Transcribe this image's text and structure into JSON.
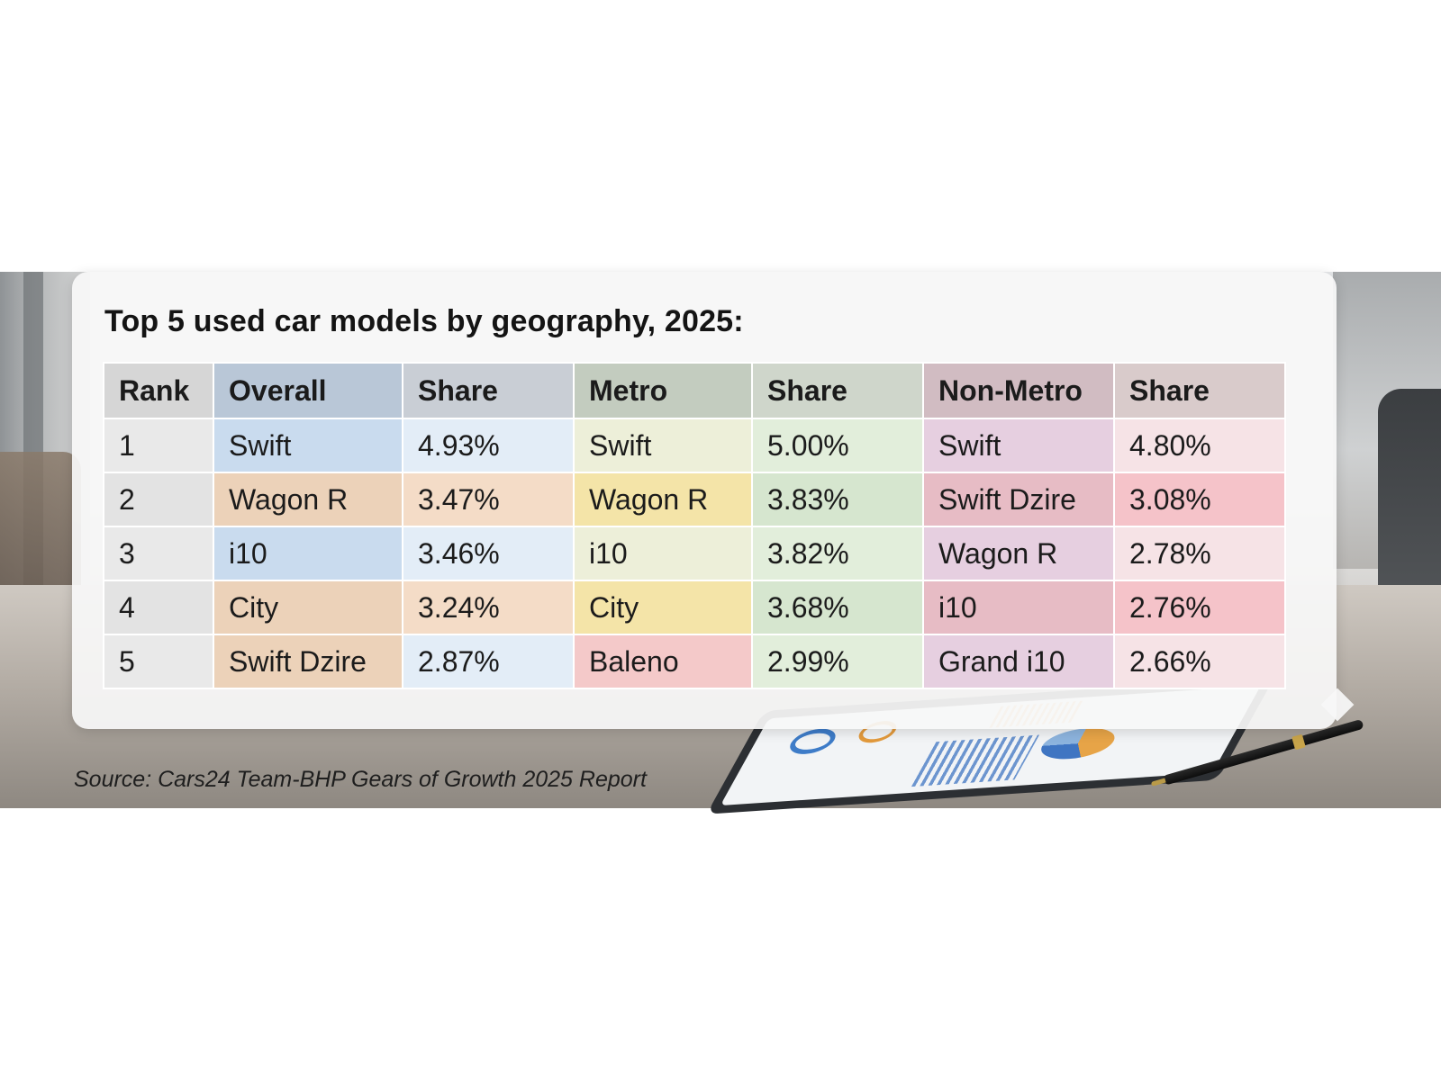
{
  "title": "Top 5 used car models by geography, 2025:",
  "source": "Source: Cars24 Team-BHP Gears of Growth 2025 Report",
  "chart_data": {
    "type": "table",
    "columns": [
      "Rank",
      "Overall",
      "Share",
      "Metro",
      "Share",
      "Non-Metro",
      "Share"
    ],
    "rows": [
      [
        "1",
        "Swift",
        "4.93%",
        "Swift",
        "5.00%",
        "Swift",
        "4.80%"
      ],
      [
        "2",
        "Wagon R",
        "3.47%",
        "Wagon R",
        "3.83%",
        "Swift Dzire",
        "3.08%"
      ],
      [
        "3",
        "i10",
        "3.46%",
        "i10",
        "3.82%",
        "Wagon R",
        "2.78%"
      ],
      [
        "4",
        "City",
        "3.24%",
        "City",
        "3.68%",
        "i10",
        "2.76%"
      ],
      [
        "5",
        "Swift Dzire",
        "2.87%",
        "Baleno",
        "2.99%",
        "Grand i10",
        "2.66%"
      ]
    ],
    "header_colors": [
      "#d6d6d6",
      "#b9c7d7",
      "#c9ced5",
      "#c3ccbf",
      "#cfd6cb",
      "#d1bcc2",
      "#d9cbcb"
    ],
    "cell_colors": [
      [
        "#e9e9e9",
        "#c9dbee",
        "#e3edf7",
        "#edefd9",
        "#e2eedb",
        "#e6cfe0",
        "#f6e3e6"
      ],
      [
        "#e3e3e3",
        "#ecd2b9",
        "#f4dcc7",
        "#f4e4a8",
        "#d6e6cf",
        "#e7bcc5",
        "#f5c3c9"
      ],
      [
        "#e9e9e9",
        "#c9dbee",
        "#e3edf7",
        "#edefd9",
        "#e2eedb",
        "#e6cfe0",
        "#f6e3e6"
      ],
      [
        "#e3e3e3",
        "#ecd2b9",
        "#f4dcc7",
        "#f4e4a8",
        "#d6e6cf",
        "#e7bcc5",
        "#f5c3c9"
      ],
      [
        "#e9e9e9",
        "#ecd2b9",
        "#e3edf7",
        "#f4c9c9",
        "#e2eedb",
        "#e6cfe0",
        "#f6e3e6"
      ]
    ]
  }
}
